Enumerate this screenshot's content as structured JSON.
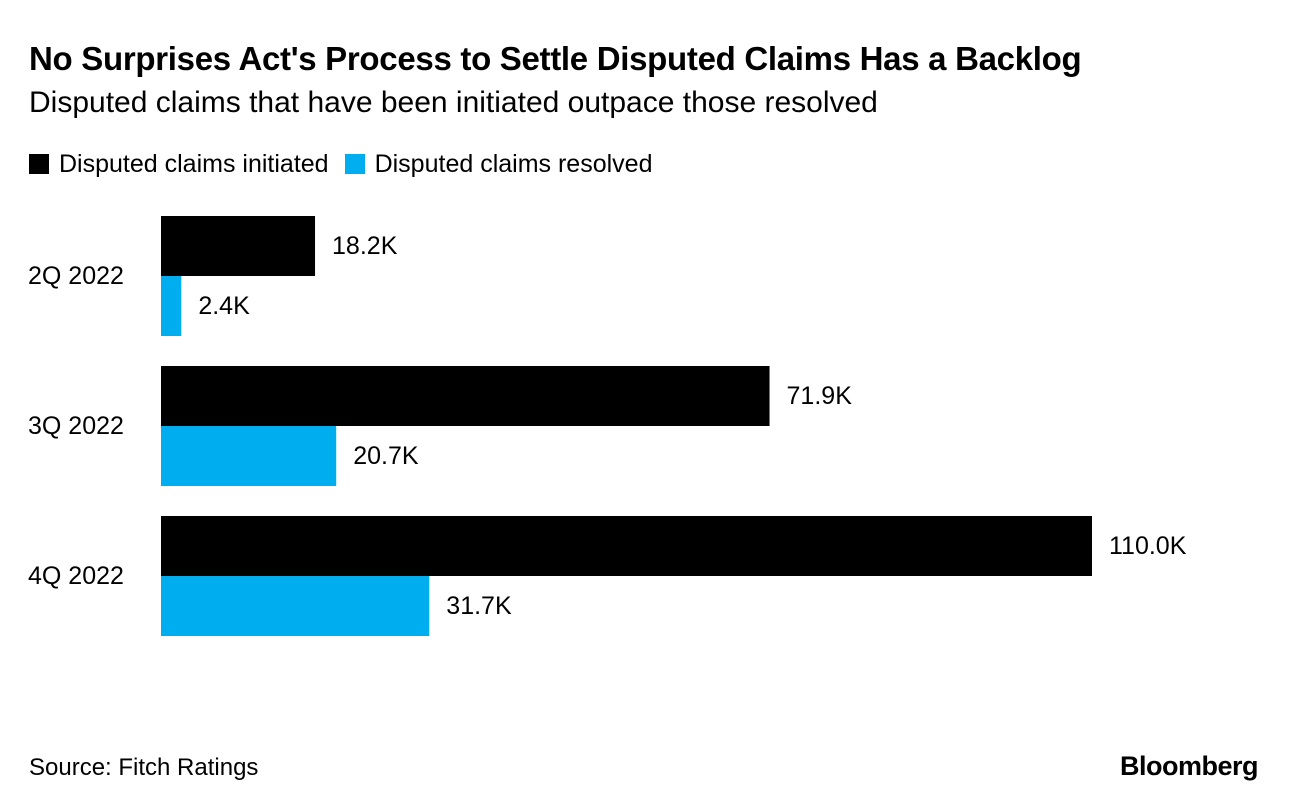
{
  "header": {
    "title": "No Surprises Act's Process to Settle Disputed Claims Has a Backlog",
    "subtitle": "Disputed claims that have been initiated outpace those resolved"
  },
  "legend": [
    {
      "label": "Disputed claims initiated",
      "color": "#000000"
    },
    {
      "label": "Disputed claims resolved",
      "color": "#00aeef"
    }
  ],
  "chart_data": {
    "type": "bar",
    "orientation": "horizontal",
    "title": "No Surprises Act's Process to Settle Disputed Claims Has a Backlog",
    "subtitle": "Disputed claims that have been initiated outpace those resolved",
    "categories": [
      "2Q 2022",
      "3Q 2022",
      "4Q 2022"
    ],
    "series": [
      {
        "name": "Disputed claims initiated",
        "values": [
          18.2,
          71.9,
          110.0
        ],
        "labels": [
          "18.2K",
          "71.9K",
          "110.0K"
        ],
        "color": "#000000"
      },
      {
        "name": "Disputed claims resolved",
        "values": [
          2.4,
          20.7,
          31.7
        ],
        "labels": [
          "2.4K",
          "20.7K",
          "31.7K"
        ],
        "color": "#00aeef"
      }
    ],
    "unit": "thousands",
    "xlim": [
      0,
      110
    ],
    "grid": false,
    "legend_position": "top-left",
    "xlabel": "",
    "ylabel": ""
  },
  "footer": {
    "source": "Source: Fitch Ratings",
    "brand": "Bloomberg"
  }
}
